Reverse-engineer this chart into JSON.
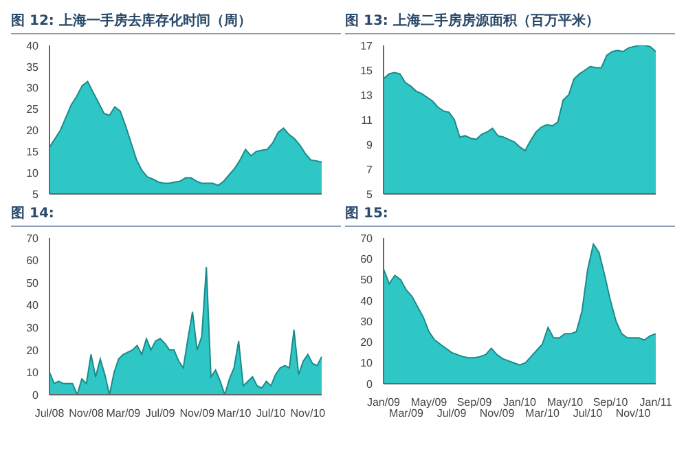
{
  "chart_data": [
    {
      "type": "area",
      "title": "图 12: 上海一手房去库存化时间（周）",
      "categories": [
        null,
        null,
        null,
        null,
        null,
        null,
        null,
        null,
        null,
        null,
        null,
        null,
        null,
        null,
        null,
        null,
        null,
        null,
        null,
        null,
        null,
        null,
        null,
        null,
        null,
        null,
        null,
        null,
        null,
        null,
        null,
        null,
        null,
        null,
        null,
        null,
        null,
        null,
        null,
        null,
        null,
        null,
        null,
        null,
        null,
        null,
        null,
        null,
        null,
        null,
        null
      ],
      "tick_labels": "y",
      "color": "#2fc6c6",
      "ylim": [
        5,
        40
      ],
      "yticks": [
        5,
        10,
        15,
        20,
        25,
        30,
        35,
        40
      ],
      "grid": false,
      "legend": false,
      "values": [
        16,
        18,
        20,
        23,
        26,
        28,
        30.5,
        31.5,
        29,
        26.5,
        24,
        23.5,
        25.5,
        24.5,
        21,
        17,
        13,
        10.5,
        9,
        8.5,
        7.8,
        7.5,
        7.5,
        7.8,
        8,
        8.8,
        8.8,
        8,
        7.5,
        7.5,
        7.5,
        7,
        8,
        9.5,
        11,
        13,
        15.5,
        14,
        15,
        15.3,
        15.5,
        17,
        19.5,
        20.5,
        19,
        18,
        16.5,
        14.5,
        13,
        12.8,
        12.5
      ]
    },
    {
      "type": "area",
      "title": "图 13: 上海二手房房源面积（百万平米）",
      "categories": [
        null,
        null,
        null,
        null,
        null,
        null,
        null,
        null,
        null,
        null,
        null,
        null,
        null,
        null,
        null,
        null,
        null,
        null,
        null,
        null,
        null,
        null,
        null,
        null,
        null,
        null,
        null,
        null,
        null,
        null,
        null,
        null,
        null,
        null,
        null,
        null,
        null,
        null,
        null,
        null,
        null,
        null,
        null,
        null,
        null,
        null,
        null,
        null,
        null,
        null,
        null
      ],
      "tick_labels": "y",
      "color": "#2fc6c6",
      "ylim": [
        5,
        17
      ],
      "yticks": [
        5,
        7,
        9,
        11,
        13,
        15,
        17
      ],
      "grid": false,
      "legend": false,
      "values": [
        14.3,
        14.7,
        14.8,
        14.7,
        14,
        13.7,
        13.3,
        13.1,
        12.8,
        12.5,
        12,
        11.7,
        11.6,
        11,
        9.6,
        9.7,
        9.5,
        9.4,
        9.8,
        10,
        10.3,
        9.7,
        9.6,
        9.4,
        9.2,
        8.8,
        8.5,
        9.3,
        10,
        10.4,
        10.6,
        10.5,
        10.8,
        12.6,
        13,
        14.3,
        14.7,
        15,
        15.3,
        15.2,
        15.2,
        16.2,
        16.5,
        16.6,
        16.5,
        16.8,
        16.9,
        17,
        17,
        16.9,
        16.5
      ]
    },
    {
      "type": "area",
      "title": "图 14:",
      "categories": [
        "Jul/08",
        null,
        null,
        null,
        null,
        null,
        null,
        null,
        "Nov/08",
        null,
        null,
        null,
        null,
        null,
        null,
        null,
        "Mar/09",
        null,
        null,
        null,
        null,
        null,
        null,
        null,
        "Jul/09",
        null,
        null,
        null,
        null,
        null,
        null,
        null,
        "Nov/09",
        null,
        null,
        null,
        null,
        null,
        null,
        null,
        "Mar/10",
        null,
        null,
        null,
        null,
        null,
        null,
        null,
        "Jul/10",
        null,
        null,
        null,
        null,
        null,
        null,
        null,
        "Nov/10",
        null,
        null,
        null
      ],
      "color": "#2fc6c6",
      "ylim": [
        0,
        70
      ],
      "yticks": [
        0,
        10,
        20,
        30,
        40,
        50,
        60,
        70
      ],
      "grid": false,
      "legend": false,
      "values": [
        10,
        5,
        6,
        5,
        5,
        5,
        0,
        7,
        5,
        18,
        8,
        16,
        9,
        0,
        10,
        16,
        18,
        19,
        20,
        22,
        18,
        25,
        20,
        24,
        25,
        23,
        20,
        20,
        15,
        12,
        25,
        37,
        20,
        26,
        57,
        8,
        11,
        6,
        0,
        7,
        12,
        24,
        4,
        6,
        8,
        4,
        3,
        6,
        4,
        9,
        12,
        13,
        12,
        29,
        9,
        15,
        18,
        14,
        13,
        17
      ]
    },
    {
      "type": "area",
      "title": "图 15:",
      "categories": [
        "Jan/09",
        null,
        null,
        null,
        "Mar/09",
        null,
        null,
        null,
        "May/09",
        null,
        null,
        null,
        "Jul/09",
        null,
        null,
        null,
        "Sep/09",
        null,
        null,
        null,
        "Nov/09",
        null,
        null,
        null,
        "Jan/10",
        null,
        null,
        null,
        "Mar/10",
        null,
        null,
        null,
        "May/10",
        null,
        null,
        null,
        "Jul/10",
        null,
        null,
        null,
        "Sep/10",
        null,
        null,
        null,
        "Nov/10",
        null,
        null,
        null,
        "Jan/11"
      ],
      "color": "#2fc6c6",
      "ylim": [
        0,
        70
      ],
      "yticks": [
        0,
        10,
        20,
        30,
        40,
        50,
        60,
        70
      ],
      "grid": false,
      "legend": false,
      "values": [
        55,
        48,
        52,
        50,
        45,
        42,
        37,
        32,
        25,
        21,
        19,
        17,
        15,
        14,
        13,
        12.5,
        12.5,
        13,
        14,
        17,
        14,
        12,
        11,
        10,
        9,
        10,
        13,
        16,
        19,
        27,
        22,
        22,
        24,
        24,
        25,
        35,
        55,
        67,
        63,
        52,
        40,
        30,
        24,
        22,
        22,
        22,
        21,
        23,
        24
      ]
    }
  ]
}
